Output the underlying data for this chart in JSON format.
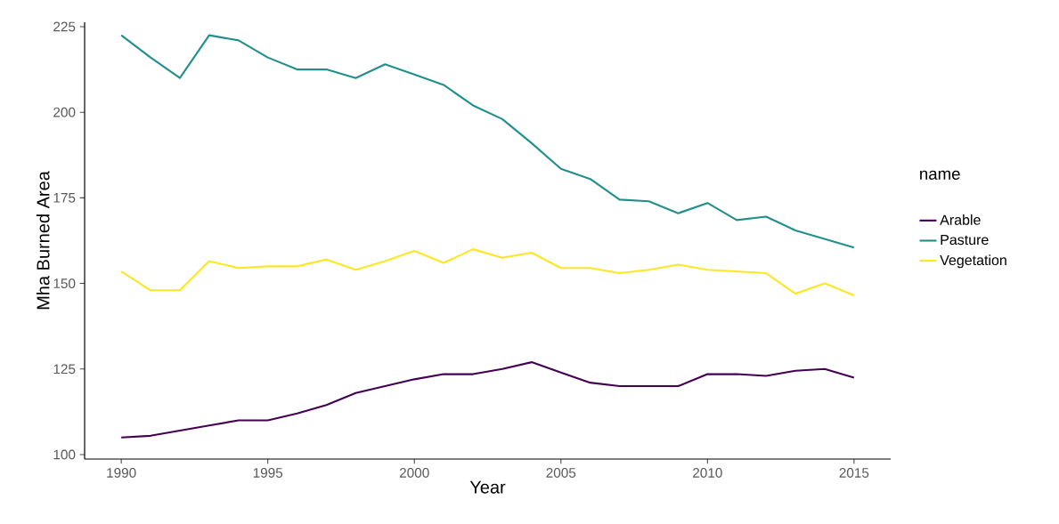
{
  "chart_data": {
    "type": "line",
    "xlabel": "Year",
    "ylabel": "Mha Burned Area",
    "legend_title": "name",
    "x": [
      1990,
      1991,
      1992,
      1993,
      1994,
      1995,
      1996,
      1997,
      1998,
      1999,
      2000,
      2001,
      2002,
      2003,
      2004,
      2005,
      2006,
      2007,
      2008,
      2009,
      2010,
      2011,
      2012,
      2013,
      2014,
      2015
    ],
    "series": [
      {
        "name": "Arable",
        "color": "#440154",
        "values": [
          105,
          105.5,
          107,
          108.5,
          110,
          110,
          112,
          114.5,
          118,
          120,
          122,
          123.5,
          123.5,
          125,
          127,
          124,
          121,
          120,
          120,
          120,
          123.5,
          123.5,
          123,
          124.5,
          125,
          122.5
        ]
      },
      {
        "name": "Pasture",
        "color": "#21908c",
        "values": [
          222.5,
          216,
          210,
          222.5,
          221,
          216,
          212.5,
          212.5,
          210,
          214,
          211,
          208,
          202,
          198,
          191,
          183.5,
          180.5,
          174.5,
          174,
          170.5,
          173.5,
          168.5,
          169.5,
          165.5,
          163,
          160.5
        ]
      },
      {
        "name": "Vegetation",
        "color": "#fde725",
        "values": [
          153.5,
          148,
          148,
          156.5,
          154.5,
          155,
          155,
          157,
          154,
          156.5,
          159.5,
          156,
          160,
          157.5,
          159,
          154.5,
          154.5,
          153,
          154,
          155.5,
          154,
          153.5,
          153,
          147,
          150,
          146.5
        ]
      }
    ],
    "xlim": [
      1988.75,
      2016.25
    ],
    "ylim": [
      98.7,
      226.3
    ],
    "xticks": [
      1990,
      1995,
      2000,
      2005,
      2010,
      2015
    ],
    "yticks": [
      100,
      125,
      150,
      175,
      200,
      225
    ],
    "grid": false,
    "legend": "right",
    "marker": "none",
    "line_style": "solid"
  }
}
